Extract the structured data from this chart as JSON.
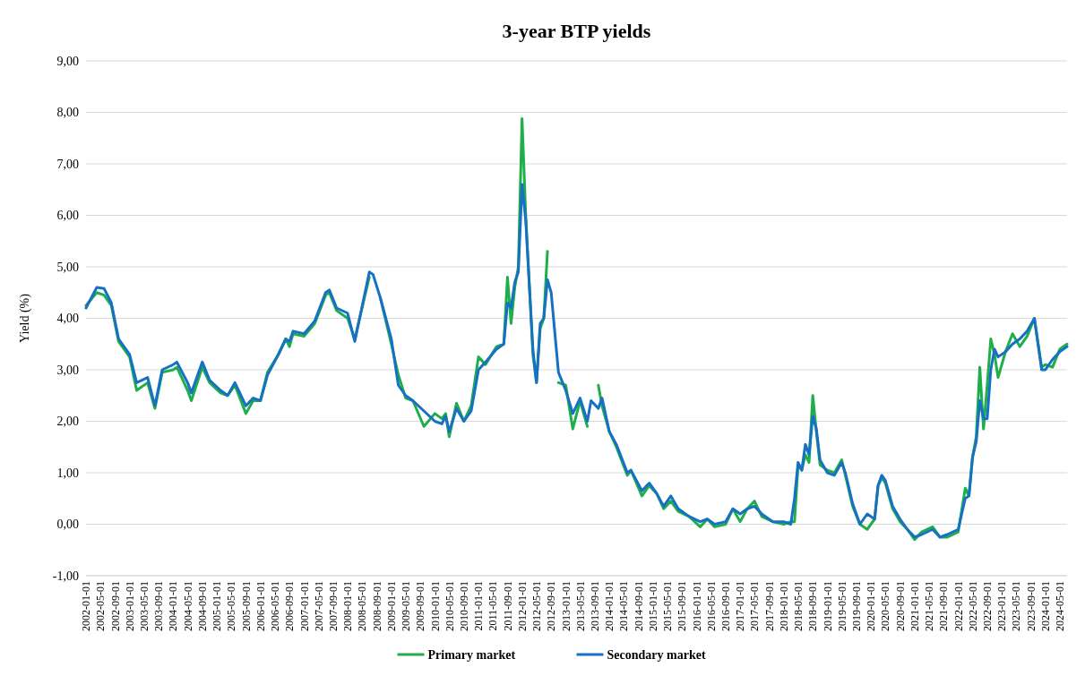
{
  "chart_data": {
    "type": "line",
    "title": "3-year BTP yields",
    "ylabel": "Yield (%)",
    "x": [
      "2002-01",
      "2002-04",
      "2002-06",
      "2002-08",
      "2002-10",
      "2003-01",
      "2003-03",
      "2003-06",
      "2003-08",
      "2003-10",
      "2004-01",
      "2004-02",
      "2004-05",
      "2004-06",
      "2004-09",
      "2004-11",
      "2005-02",
      "2005-04",
      "2005-06",
      "2005-09",
      "2005-11",
      "2006-01",
      "2006-03",
      "2006-06",
      "2006-08",
      "2006-09",
      "2006-10",
      "2007-01",
      "2007-04",
      "2007-07",
      "2007-08",
      "2007-10",
      "2008-01",
      "2008-03",
      "2008-07",
      "2008-08",
      "2008-10",
      "2009-01",
      "2009-03",
      "2009-05",
      "2009-07",
      "2009-10",
      "2010-01",
      "2010-03",
      "2010-04",
      "2010-05",
      "2010-07",
      "2010-09",
      "2010-11",
      "2011-01",
      "2011-03",
      "2011-06",
      "2011-08",
      "2011-09",
      "2011-10",
      "2011-11",
      "2011-12",
      "2012-01",
      "2012-02",
      "2012-04",
      "2012-05",
      "2012-06",
      "2012-07",
      "2012-08",
      "2012-09",
      "2012-11",
      "2013-01",
      "2013-03",
      "2013-05",
      "2013-07",
      "2013-08",
      "2013-10",
      "2013-11",
      "2014-01",
      "2014-03",
      "2014-06",
      "2014-07",
      "2014-10",
      "2014-12",
      "2015-02",
      "2015-04",
      "2015-06",
      "2015-08",
      "2015-11",
      "2016-02",
      "2016-04",
      "2016-06",
      "2016-09",
      "2016-11",
      "2017-01",
      "2017-03",
      "2017-05",
      "2017-07",
      "2017-10",
      "2018-01",
      "2018-03",
      "2018-04",
      "2018-05",
      "2018-06",
      "2018-07",
      "2018-08",
      "2018-09",
      "2018-10",
      "2018-11",
      "2019-01",
      "2019-03",
      "2019-05",
      "2019-06",
      "2019-08",
      "2019-10",
      "2019-12",
      "2020-02",
      "2020-03",
      "2020-04",
      "2020-05",
      "2020-07",
      "2020-09",
      "2020-11",
      "2021-01",
      "2021-03",
      "2021-06",
      "2021-08",
      "2021-10",
      "2022-01",
      "2022-03",
      "2022-04",
      "2022-05",
      "2022-06",
      "2022-07",
      "2022-08",
      "2022-09",
      "2022-10",
      "2022-11",
      "2022-12",
      "2023-02",
      "2023-04",
      "2023-06",
      "2023-08",
      "2023-10",
      "2023-12",
      "2024-01",
      "2024-03",
      "2024-05",
      "2024-07"
    ],
    "series": [
      {
        "name": "Primary market",
        "color": "#1eae4a",
        "values": [
          4.25,
          4.5,
          4.45,
          4.25,
          3.55,
          3.25,
          2.6,
          2.75,
          2.25,
          2.95,
          3.0,
          3.05,
          2.6,
          2.4,
          3.05,
          2.75,
          2.55,
          2.5,
          2.7,
          2.15,
          2.4,
          2.4,
          2.95,
          3.3,
          3.6,
          3.45,
          3.7,
          3.65,
          3.9,
          4.45,
          4.5,
          4.15,
          4.0,
          3.6,
          4.8,
          null,
          4.4,
          3.5,
          2.9,
          2.45,
          2.4,
          1.9,
          2.15,
          2.05,
          2.15,
          1.7,
          2.35,
          2.0,
          2.3,
          3.25,
          3.1,
          3.45,
          3.5,
          4.8,
          3.9,
          4.6,
          5.0,
          7.88,
          6.0,
          3.3,
          2.75,
          3.8,
          4.0,
          5.3,
          null,
          2.75,
          2.7,
          1.85,
          2.4,
          1.9,
          null,
          2.7,
          2.3,
          1.8,
          1.5,
          0.95,
          1.05,
          0.55,
          0.75,
          0.6,
          0.3,
          0.45,
          0.25,
          0.15,
          -0.05,
          0.1,
          -0.05,
          0.0,
          0.3,
          0.05,
          0.3,
          0.45,
          0.15,
          0.05,
          0.0,
          0.05,
          0.05,
          1.15,
          1.05,
          1.35,
          1.2,
          2.5,
          1.8,
          1.15,
          1.05,
          1.0,
          1.25,
          0.95,
          0.35,
          0.0,
          -0.1,
          0.1,
          0.75,
          0.9,
          0.8,
          0.3,
          0.05,
          -0.1,
          -0.3,
          -0.15,
          -0.05,
          -0.25,
          -0.25,
          -0.15,
          0.7,
          0.55,
          1.3,
          1.7,
          3.05,
          1.85,
          2.7,
          3.6,
          3.3,
          2.85,
          3.35,
          3.7,
          3.45,
          3.65,
          4.0,
          3.05,
          3.1,
          3.05,
          3.4,
          3.5
        ]
      },
      {
        "name": "Secondary market",
        "color": "#1670c4",
        "values": [
          4.2,
          4.6,
          4.58,
          4.3,
          3.6,
          3.3,
          2.75,
          2.85,
          2.3,
          3.0,
          3.1,
          3.15,
          2.75,
          2.55,
          3.15,
          2.8,
          2.6,
          2.5,
          2.75,
          2.3,
          2.45,
          2.4,
          2.9,
          3.3,
          3.6,
          3.55,
          3.75,
          3.7,
          3.95,
          4.5,
          4.55,
          4.2,
          4.1,
          3.55,
          4.9,
          4.85,
          4.4,
          3.6,
          2.7,
          2.5,
          2.4,
          2.2,
          2.0,
          1.95,
          2.1,
          1.8,
          2.25,
          2.0,
          2.2,
          3.0,
          3.15,
          3.4,
          3.5,
          4.3,
          4.2,
          4.7,
          4.9,
          6.6,
          5.9,
          3.4,
          2.75,
          3.9,
          4.0,
          4.75,
          4.5,
          2.95,
          2.6,
          2.15,
          2.45,
          2.0,
          2.4,
          2.25,
          2.45,
          1.8,
          1.55,
          1.0,
          1.05,
          0.65,
          0.8,
          0.6,
          0.35,
          0.55,
          0.3,
          0.15,
          0.05,
          0.1,
          0.0,
          0.05,
          0.3,
          0.2,
          0.3,
          0.35,
          0.2,
          0.05,
          0.05,
          0.0,
          0.5,
          1.2,
          1.05,
          1.55,
          1.35,
          2.1,
          1.85,
          1.25,
          1.0,
          0.95,
          1.2,
          1.0,
          0.4,
          0.0,
          0.2,
          0.1,
          0.75,
          0.95,
          0.85,
          0.35,
          0.1,
          -0.1,
          -0.25,
          -0.2,
          -0.1,
          -0.25,
          -0.2,
          -0.1,
          0.5,
          0.55,
          1.3,
          1.6,
          2.4,
          2.05,
          2.05,
          3.0,
          3.4,
          3.25,
          3.35,
          3.5,
          3.6,
          3.75,
          4.0,
          3.0,
          3.0,
          3.2,
          3.35,
          3.45
        ]
      }
    ],
    "xlim": [
      "2002-01",
      "2024-07"
    ],
    "xticks": [
      "2002-01-01",
      "2002-05-01",
      "2002-09-01",
      "2003-01-01",
      "2003-05-01",
      "2003-09-01",
      "2004-01-01",
      "2004-05-01",
      "2004-09-01",
      "2005-01-01",
      "2005-05-01",
      "2005-09-01",
      "2006-01-01",
      "2006-05-01",
      "2006-09-01",
      "2007-01-01",
      "2007-05-01",
      "2007-09-01",
      "2008-01-01",
      "2008-05-01",
      "2008-09-01",
      "2009-01-01",
      "2009-05-01",
      "2009-09-01",
      "2010-01-01",
      "2010-05-01",
      "2010-09-01",
      "2011-01-01",
      "2011-05-01",
      "2011-09-01",
      "2012-01-01",
      "2012-05-01",
      "2012-09-01",
      "2013-01-01",
      "2013-05-01",
      "2013-09-01",
      "2014-01-01",
      "2014-05-01",
      "2014-09-01",
      "2015-01-01",
      "2015-05-01",
      "2015-09-01",
      "2016-01-01",
      "2016-05-01",
      "2016-09-01",
      "2017-01-01",
      "2017-05-01",
      "2017-09-01",
      "2018-01-01",
      "2018-05-01",
      "2018-09-01",
      "2019-01-01",
      "2019-05-01",
      "2019-09-01",
      "2020-01-01",
      "2020-05-01",
      "2020-09-01",
      "2021-01-01",
      "2021-05-01",
      "2021-09-01",
      "2022-01-01",
      "2022-05-01",
      "2022-09-01",
      "2023-01-01",
      "2023-05-01",
      "2023-09-01",
      "2024-01-01",
      "2024-05-01"
    ],
    "ylim": [
      -1,
      9
    ],
    "yticks": [
      {
        "value": -1,
        "label": "-1,00"
      },
      {
        "value": 0,
        "label": "0,00"
      },
      {
        "value": 1,
        "label": "1,00"
      },
      {
        "value": 2,
        "label": "2,00"
      },
      {
        "value": 3,
        "label": "3,00"
      },
      {
        "value": 4,
        "label": "4,00"
      },
      {
        "value": 5,
        "label": "5,00"
      },
      {
        "value": 6,
        "label": "6,00"
      },
      {
        "value": 7,
        "label": "7,00"
      },
      {
        "value": 8,
        "label": "8,00"
      },
      {
        "value": 9,
        "label": "9,00"
      }
    ],
    "grid": "y",
    "legend": "bottom",
    "line_style": "solid"
  }
}
